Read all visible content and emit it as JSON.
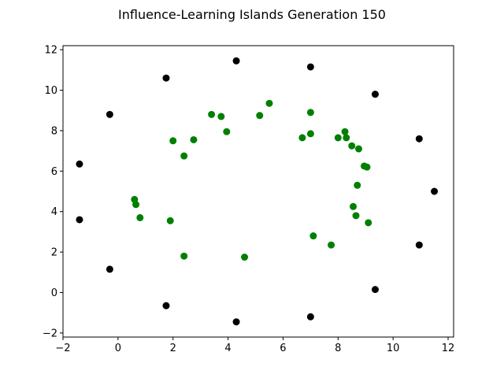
{
  "chart_data": {
    "type": "scatter",
    "title": "Influence-Learning Islands Generation 150",
    "xlim": [
      -2,
      12.2
    ],
    "ylim": [
      -2.2,
      12.2
    ],
    "xticks": [
      -2,
      0,
      2,
      4,
      6,
      8,
      10,
      12
    ],
    "yticks": [
      -2,
      0,
      2,
      4,
      6,
      8,
      10,
      12
    ],
    "grid": false,
    "series": [
      {
        "color": "#000000",
        "points": [
          [
            4.3,
            11.45
          ],
          [
            7.0,
            11.15
          ],
          [
            1.75,
            10.6
          ],
          [
            9.35,
            9.8
          ],
          [
            -0.3,
            8.8
          ],
          [
            10.95,
            7.6
          ],
          [
            -1.4,
            6.35
          ],
          [
            11.5,
            5.0
          ],
          [
            -1.4,
            3.6
          ],
          [
            10.95,
            2.35
          ],
          [
            -0.3,
            1.15
          ],
          [
            9.35,
            0.15
          ],
          [
            1.75,
            -0.65
          ],
          [
            7.0,
            -1.2
          ],
          [
            4.3,
            -1.45
          ]
        ]
      },
      {
        "color": "#008000",
        "points": [
          [
            5.5,
            9.35
          ],
          [
            7.0,
            8.9
          ],
          [
            3.4,
            8.8
          ],
          [
            5.15,
            8.75
          ],
          [
            3.75,
            8.7
          ],
          [
            3.95,
            7.95
          ],
          [
            8.25,
            7.95
          ],
          [
            7.0,
            7.85
          ],
          [
            6.7,
            7.65
          ],
          [
            8.0,
            7.65
          ],
          [
            8.3,
            7.65
          ],
          [
            2.75,
            7.55
          ],
          [
            2.0,
            7.5
          ],
          [
            8.5,
            7.25
          ],
          [
            8.75,
            7.1
          ],
          [
            2.4,
            6.75
          ],
          [
            8.95,
            6.25
          ],
          [
            9.05,
            6.2
          ],
          [
            8.7,
            5.3
          ],
          [
            0.6,
            4.6
          ],
          [
            0.65,
            4.35
          ],
          [
            8.55,
            4.25
          ],
          [
            8.65,
            3.8
          ],
          [
            0.8,
            3.7
          ],
          [
            1.9,
            3.55
          ],
          [
            9.1,
            3.45
          ],
          [
            7.1,
            2.8
          ],
          [
            7.75,
            2.35
          ],
          [
            2.4,
            1.8
          ],
          [
            4.6,
            1.75
          ]
        ]
      }
    ]
  }
}
